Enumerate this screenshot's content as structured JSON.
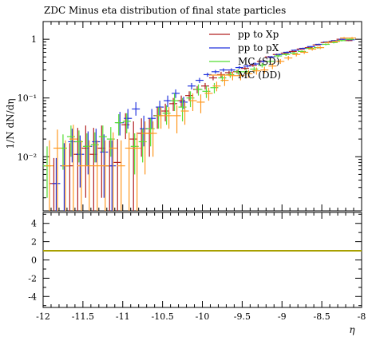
{
  "title": "ZDC Minus eta distribution of final state particles",
  "colors": {
    "pp_to_Xp": "#b22222",
    "pp_to_pX": "#2233dd",
    "mc_sd": "#55dd33",
    "mc_dd": "#ff9922",
    "ratio_line": "#a8a000"
  },
  "chart_data": [
    {
      "type": "scatter",
      "title": "ZDC Minus eta distribution of final state particles",
      "ylabel": "1/N dN/dη",
      "yscale": "log",
      "ylim": [
        0.0012,
        2.0
      ],
      "xlim": [
        -12,
        -8
      ],
      "yticks": [
        {
          "value": 0.01,
          "label": "10⁻²"
        },
        {
          "value": 0.1,
          "label": "10⁻¹"
        },
        {
          "value": 1,
          "label": "1"
        }
      ],
      "legend": {
        "position": "top-right",
        "entries": [
          "pp to Xp",
          "pp to pX",
          "MC (SD)",
          "MC (DD)"
        ]
      },
      "bin_width": 0.1,
      "series": [
        {
          "name": "pp to Xp",
          "color_key": "pp_to_Xp",
          "offset": -0.015,
          "x": [
            -11.85,
            -11.65,
            -11.55,
            -11.45,
            -11.35,
            -11.25,
            -11.15,
            -11.05,
            -10.95,
            -10.85,
            -10.75,
            -10.65,
            -10.55,
            -10.45,
            -10.35,
            -10.25,
            -10.15,
            -10.05,
            -9.95,
            -9.85,
            -9.75,
            -9.65,
            -9.55,
            -9.45,
            -9.35,
            -9.25,
            -9.15,
            -9.05,
            -8.95,
            -8.85,
            -8.75,
            -8.65,
            -8.55,
            -8.45,
            -8.35,
            -8.25,
            -8.15
          ],
          "y": [
            0.0035,
            0.007,
            0.011,
            0.014,
            0.011,
            0.014,
            0.007,
            0.008,
            0.035,
            0.02,
            0.025,
            0.025,
            0.05,
            0.06,
            0.08,
            0.09,
            0.11,
            0.14,
            0.16,
            0.22,
            0.25,
            0.27,
            0.28,
            0.32,
            0.36,
            0.42,
            0.5,
            0.55,
            0.58,
            0.62,
            0.68,
            0.72,
            0.8,
            0.88,
            0.92,
            1.0,
            0.95
          ],
          "err_lo": [
            0.0035,
            0.0069,
            0.0109,
            0.012,
            0.0109,
            0.012,
            0.0069,
            0.0079,
            0.015,
            0.0198,
            0.015,
            0.015,
            0.02,
            0.02,
            0.02,
            0.02,
            0.02,
            0.02,
            0.02,
            0.02,
            0.03,
            0.02,
            0.02,
            0.02,
            0.02,
            0.02,
            0.02,
            0.02,
            0.02,
            0.02,
            0.02,
            0.02,
            0.02,
            0.02,
            0.02,
            0.02,
            0.02
          ],
          "err_hi": [
            0.006,
            0.01,
            0.02,
            0.02,
            0.02,
            0.02,
            0.012,
            0.012,
            0.02,
            0.02,
            0.02,
            0.02,
            0.02,
            0.02,
            0.02,
            0.02,
            0.02,
            0.02,
            0.02,
            0.02,
            0.03,
            0.02,
            0.02,
            0.02,
            0.02,
            0.02,
            0.02,
            0.02,
            0.02,
            0.02,
            0.02,
            0.02,
            0.02,
            0.02,
            0.02,
            0.02,
            0.02
          ]
        },
        {
          "name": "pp to pX",
          "color_key": "pp_to_pX",
          "offset": 0.015,
          "x": [
            -11.85,
            -11.75,
            -11.65,
            -11.55,
            -11.45,
            -11.35,
            -11.25,
            -11.15,
            -11.05,
            -10.95,
            -10.85,
            -10.75,
            -10.65,
            -10.55,
            -10.45,
            -10.35,
            -10.25,
            -10.15,
            -10.05,
            -9.95,
            -9.85,
            -9.75,
            -9.65,
            -9.55,
            -9.45,
            -9.35,
            -9.25,
            -9.15,
            -9.05,
            -8.95,
            -8.85,
            -8.75,
            -8.65,
            -8.55,
            -8.45,
            -8.35,
            -8.25,
            -8.15
          ],
          "y": [
            0.0035,
            0.007,
            0.018,
            0.011,
            0.015,
            0.018,
            0.012,
            0.007,
            0.038,
            0.045,
            0.065,
            0.03,
            0.045,
            0.07,
            0.09,
            0.12,
            0.085,
            0.16,
            0.2,
            0.25,
            0.28,
            0.3,
            0.3,
            0.33,
            0.35,
            0.38,
            0.42,
            0.5,
            0.55,
            0.6,
            0.65,
            0.7,
            0.75,
            0.82,
            0.9,
            0.95,
            1.0,
            0.98
          ],
          "err_lo": [
            0.0035,
            0.0069,
            0.01,
            0.008,
            0.01,
            0.01,
            0.01,
            0.0069,
            0.015,
            0.015,
            0.015,
            0.015,
            0.015,
            0.02,
            0.02,
            0.02,
            0.02,
            0.02,
            0.02,
            0.02,
            0.02,
            0.02,
            0.02,
            0.02,
            0.02,
            0.02,
            0.02,
            0.02,
            0.02,
            0.02,
            0.02,
            0.02,
            0.02,
            0.02,
            0.02,
            0.02,
            0.02,
            0.02
          ],
          "err_hi": [
            0.006,
            0.01,
            0.012,
            0.012,
            0.012,
            0.012,
            0.012,
            0.012,
            0.02,
            0.02,
            0.02,
            0.02,
            0.02,
            0.02,
            0.02,
            0.02,
            0.02,
            0.02,
            0.02,
            0.02,
            0.02,
            0.02,
            0.02,
            0.02,
            0.02,
            0.02,
            0.02,
            0.02,
            0.02,
            0.02,
            0.02,
            0.02,
            0.02,
            0.02,
            0.02,
            0.02,
            0.02,
            0.02
          ]
        },
        {
          "name": "MC (SD)",
          "color_key": "mc_sd",
          "offset": 0.0,
          "x": [
            -11.95,
            -11.75,
            -11.65,
            -11.55,
            -11.45,
            -11.35,
            -11.25,
            -11.15,
            -11.05,
            -10.95,
            -10.85,
            -10.75,
            -10.65,
            -10.55,
            -10.45,
            -10.35,
            -10.25,
            -10.15,
            -10.05,
            -9.95,
            -9.85,
            -9.75,
            -9.65,
            -9.55,
            -9.45,
            -9.35,
            -9.25,
            -9.15,
            -9.05,
            -8.95,
            -8.85,
            -8.75,
            -8.65,
            -8.55,
            -8.45,
            -8.35,
            -8.25,
            -8.15
          ],
          "y": [
            0.007,
            0.014,
            0.022,
            0.018,
            0.015,
            0.016,
            0.022,
            0.02,
            0.038,
            0.04,
            0.015,
            0.018,
            0.03,
            0.05,
            0.055,
            0.09,
            0.07,
            0.1,
            0.14,
            0.13,
            0.15,
            0.22,
            0.25,
            0.28,
            0.28,
            0.31,
            0.36,
            0.42,
            0.52,
            0.55,
            0.58,
            0.62,
            0.7,
            0.72,
            0.82,
            0.88,
            0.95,
            1.0
          ],
          "err_lo": [
            0.005,
            0.008,
            0.012,
            0.01,
            0.008,
            0.008,
            0.01,
            0.01,
            0.015,
            0.015,
            0.01,
            0.01,
            0.015,
            0.02,
            0.02,
            0.03,
            0.03,
            0.03,
            0.03,
            0.03,
            0.03,
            0.03,
            0.03,
            0.03,
            0.03,
            0.03,
            0.03,
            0.03,
            0.03,
            0.03,
            0.03,
            0.03,
            0.03,
            0.03,
            0.03,
            0.03,
            0.03,
            0.03
          ],
          "err_hi": [
            0.008,
            0.01,
            0.012,
            0.01,
            0.01,
            0.01,
            0.012,
            0.012,
            0.015,
            0.015,
            0.01,
            0.012,
            0.015,
            0.02,
            0.02,
            0.03,
            0.03,
            0.03,
            0.03,
            0.03,
            0.03,
            0.03,
            0.03,
            0.03,
            0.03,
            0.03,
            0.03,
            0.03,
            0.03,
            0.03,
            0.03,
            0.03,
            0.03,
            0.03,
            0.03,
            0.03,
            0.03,
            0.03
          ]
        },
        {
          "name": "MC (DD)",
          "color_key": "mc_dd",
          "offset": 0.03,
          "x": [
            -11.95,
            -11.85,
            -11.75,
            -11.65,
            -11.55,
            -11.45,
            -11.35,
            -11.25,
            -11.15,
            -11.05,
            -10.95,
            -10.85,
            -10.75,
            -10.65,
            -10.55,
            -10.45,
            -10.35,
            -10.25,
            -10.15,
            -10.05,
            -9.95,
            -9.85,
            -9.75,
            -9.65,
            -9.55,
            -9.45,
            -9.35,
            -9.25,
            -9.15,
            -9.05,
            -8.95,
            -8.85,
            -8.75,
            -8.65,
            -8.55,
            -8.45,
            -8.35,
            -8.25,
            -8.15
          ],
          "y": [
            0.007,
            0.014,
            0.007,
            0.02,
            0.007,
            0.007,
            0.007,
            0.007,
            0.014,
            0.007,
            0.014,
            0.014,
            0.025,
            0.025,
            0.05,
            0.05,
            0.05,
            0.06,
            0.09,
            0.085,
            0.12,
            0.16,
            0.2,
            0.24,
            0.24,
            0.26,
            0.29,
            0.3,
            0.35,
            0.42,
            0.48,
            0.55,
            0.6,
            0.68,
            0.72,
            0.88,
            0.92,
            1.05,
            1.05
          ],
          "err_lo": [
            0.0069,
            0.0139,
            0.0069,
            0.0199,
            0.0069,
            0.0069,
            0.0069,
            0.0069,
            0.0139,
            0.0069,
            0.0139,
            0.0139,
            0.02,
            0.015,
            0.02,
            0.02,
            0.025,
            0.025,
            0.03,
            0.03,
            0.03,
            0.03,
            0.04,
            0.04,
            0.04,
            0.04,
            0.04,
            0.04,
            0.04,
            0.04,
            0.04,
            0.04,
            0.04,
            0.04,
            0.04,
            0.04,
            0.04,
            0.04,
            0.04
          ],
          "err_hi": [
            0.012,
            0.015,
            0.012,
            0.015,
            0.012,
            0.012,
            0.012,
            0.012,
            0.012,
            0.012,
            0.012,
            0.012,
            0.015,
            0.015,
            0.02,
            0.02,
            0.025,
            0.025,
            0.03,
            0.03,
            0.03,
            0.03,
            0.04,
            0.04,
            0.04,
            0.04,
            0.04,
            0.04,
            0.04,
            0.04,
            0.04,
            0.04,
            0.04,
            0.04,
            0.04,
            0.04,
            0.04,
            0.04,
            0.04
          ]
        }
      ]
    },
    {
      "type": "line",
      "ylim": [
        -5.2,
        5.2
      ],
      "yticks": [
        -4,
        -2,
        0,
        2,
        4
      ],
      "xlim": [
        -12,
        -8
      ],
      "xlabel": "η",
      "xticks": [
        {
          "value": -12,
          "label": "-12"
        },
        {
          "value": -11.5,
          "label": "-11.5"
        },
        {
          "value": -11,
          "label": "-11"
        },
        {
          "value": -10.5,
          "label": "-10.5"
        },
        {
          "value": -10,
          "label": "-10"
        },
        {
          "value": -9.5,
          "label": "-9.5"
        },
        {
          "value": -9,
          "label": "-9"
        },
        {
          "value": -8.5,
          "label": "-8.5"
        },
        {
          "value": -8,
          "label": "-8"
        }
      ],
      "series": [
        {
          "color_key": "ratio_line",
          "x": [
            -12,
            -8
          ],
          "y": [
            1,
            1
          ]
        }
      ]
    }
  ]
}
